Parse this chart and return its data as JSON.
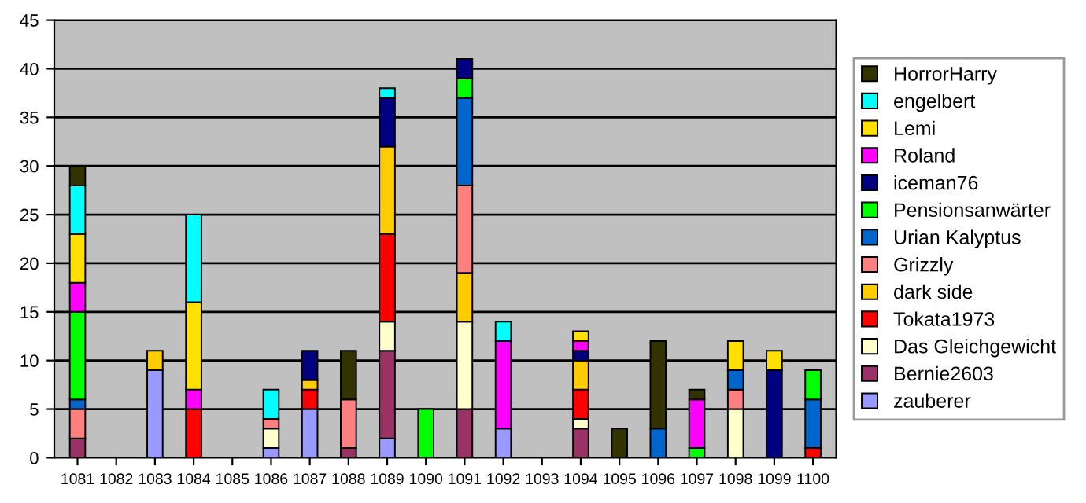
{
  "chart_data": {
    "type": "bar",
    "stacked": true,
    "legend": "right",
    "grid": "y",
    "ylim": [
      0,
      45
    ],
    "yticks": [
      0,
      5,
      10,
      15,
      20,
      25,
      30,
      35,
      40,
      45
    ],
    "categories": [
      "1081",
      "1082",
      "1083",
      "1084",
      "1085",
      "1086",
      "1087",
      "1088",
      "1089",
      "1090",
      "1091",
      "1092",
      "1093",
      "1094",
      "1095",
      "1096",
      "1097",
      "1098",
      "1099",
      "1100"
    ],
    "series": [
      {
        "name": "zauberer",
        "color": "#9999ff",
        "values": [
          null,
          null,
          9,
          null,
          null,
          1,
          5,
          null,
          2,
          null,
          null,
          3,
          null,
          null,
          null,
          null,
          null,
          null,
          null,
          null
        ]
      },
      {
        "name": "Bernie2603",
        "color": "#993366",
        "values": [
          2,
          null,
          null,
          null,
          null,
          null,
          null,
          1,
          9,
          null,
          5,
          null,
          null,
          3,
          null,
          null,
          null,
          null,
          null,
          null
        ]
      },
      {
        "name": "Das Gleichgewicht",
        "color": "#ffffcc",
        "values": [
          null,
          null,
          null,
          null,
          null,
          2,
          null,
          null,
          3,
          null,
          9,
          null,
          null,
          1,
          null,
          null,
          null,
          5,
          null,
          null
        ]
      },
      {
        "name": "Tokata1973",
        "color": "#ff0000",
        "values": [
          null,
          null,
          null,
          5,
          null,
          null,
          2,
          null,
          9,
          null,
          null,
          null,
          null,
          3,
          null,
          null,
          null,
          null,
          null,
          1
        ]
      },
      {
        "name": "dark side",
        "color": "#ffcc00",
        "values": [
          null,
          null,
          2,
          null,
          null,
          null,
          1,
          null,
          9,
          null,
          5,
          null,
          null,
          3,
          null,
          null,
          null,
          null,
          null,
          null
        ]
      },
      {
        "name": "Grizzly",
        "color": "#ff8080",
        "values": [
          3,
          null,
          null,
          null,
          null,
          1,
          null,
          5,
          null,
          null,
          9,
          null,
          null,
          null,
          null,
          null,
          null,
          2,
          null,
          null
        ]
      },
      {
        "name": "Urian Kalyptus",
        "color": "#0066cc",
        "values": [
          1,
          null,
          null,
          null,
          null,
          null,
          null,
          null,
          null,
          null,
          9,
          null,
          null,
          null,
          null,
          3,
          null,
          2,
          null,
          5
        ]
      },
      {
        "name": "Pensionsanwärter",
        "color": "#00ff00",
        "values": [
          9,
          null,
          null,
          null,
          null,
          null,
          null,
          null,
          null,
          5,
          2,
          null,
          null,
          null,
          null,
          null,
          1,
          null,
          null,
          3
        ]
      },
      {
        "name": "iceman76",
        "color": "#000080",
        "values": [
          null,
          null,
          null,
          null,
          null,
          null,
          3,
          null,
          5,
          null,
          2,
          null,
          null,
          1,
          null,
          null,
          null,
          null,
          9,
          null
        ]
      },
      {
        "name": "Roland",
        "color": "#ff00ff",
        "values": [
          3,
          null,
          null,
          2,
          null,
          null,
          null,
          null,
          null,
          null,
          null,
          9,
          null,
          1,
          null,
          null,
          5,
          null,
          null,
          null
        ]
      },
      {
        "name": "Lemi",
        "color": "#ffe000",
        "values": [
          5,
          null,
          null,
          9,
          null,
          null,
          null,
          null,
          null,
          null,
          null,
          null,
          null,
          1,
          null,
          null,
          null,
          3,
          2,
          null
        ]
      },
      {
        "name": "engelbert",
        "color": "#00ffff",
        "values": [
          5,
          null,
          null,
          9,
          null,
          3,
          null,
          null,
          1,
          null,
          null,
          2,
          null,
          null,
          null,
          null,
          null,
          null,
          null,
          null
        ]
      },
      {
        "name": "HorrorHarry",
        "color": "#333300",
        "values": [
          2,
          null,
          null,
          null,
          null,
          null,
          null,
          5,
          null,
          null,
          null,
          null,
          null,
          null,
          3,
          9,
          1,
          null,
          null,
          null
        ]
      }
    ]
  }
}
